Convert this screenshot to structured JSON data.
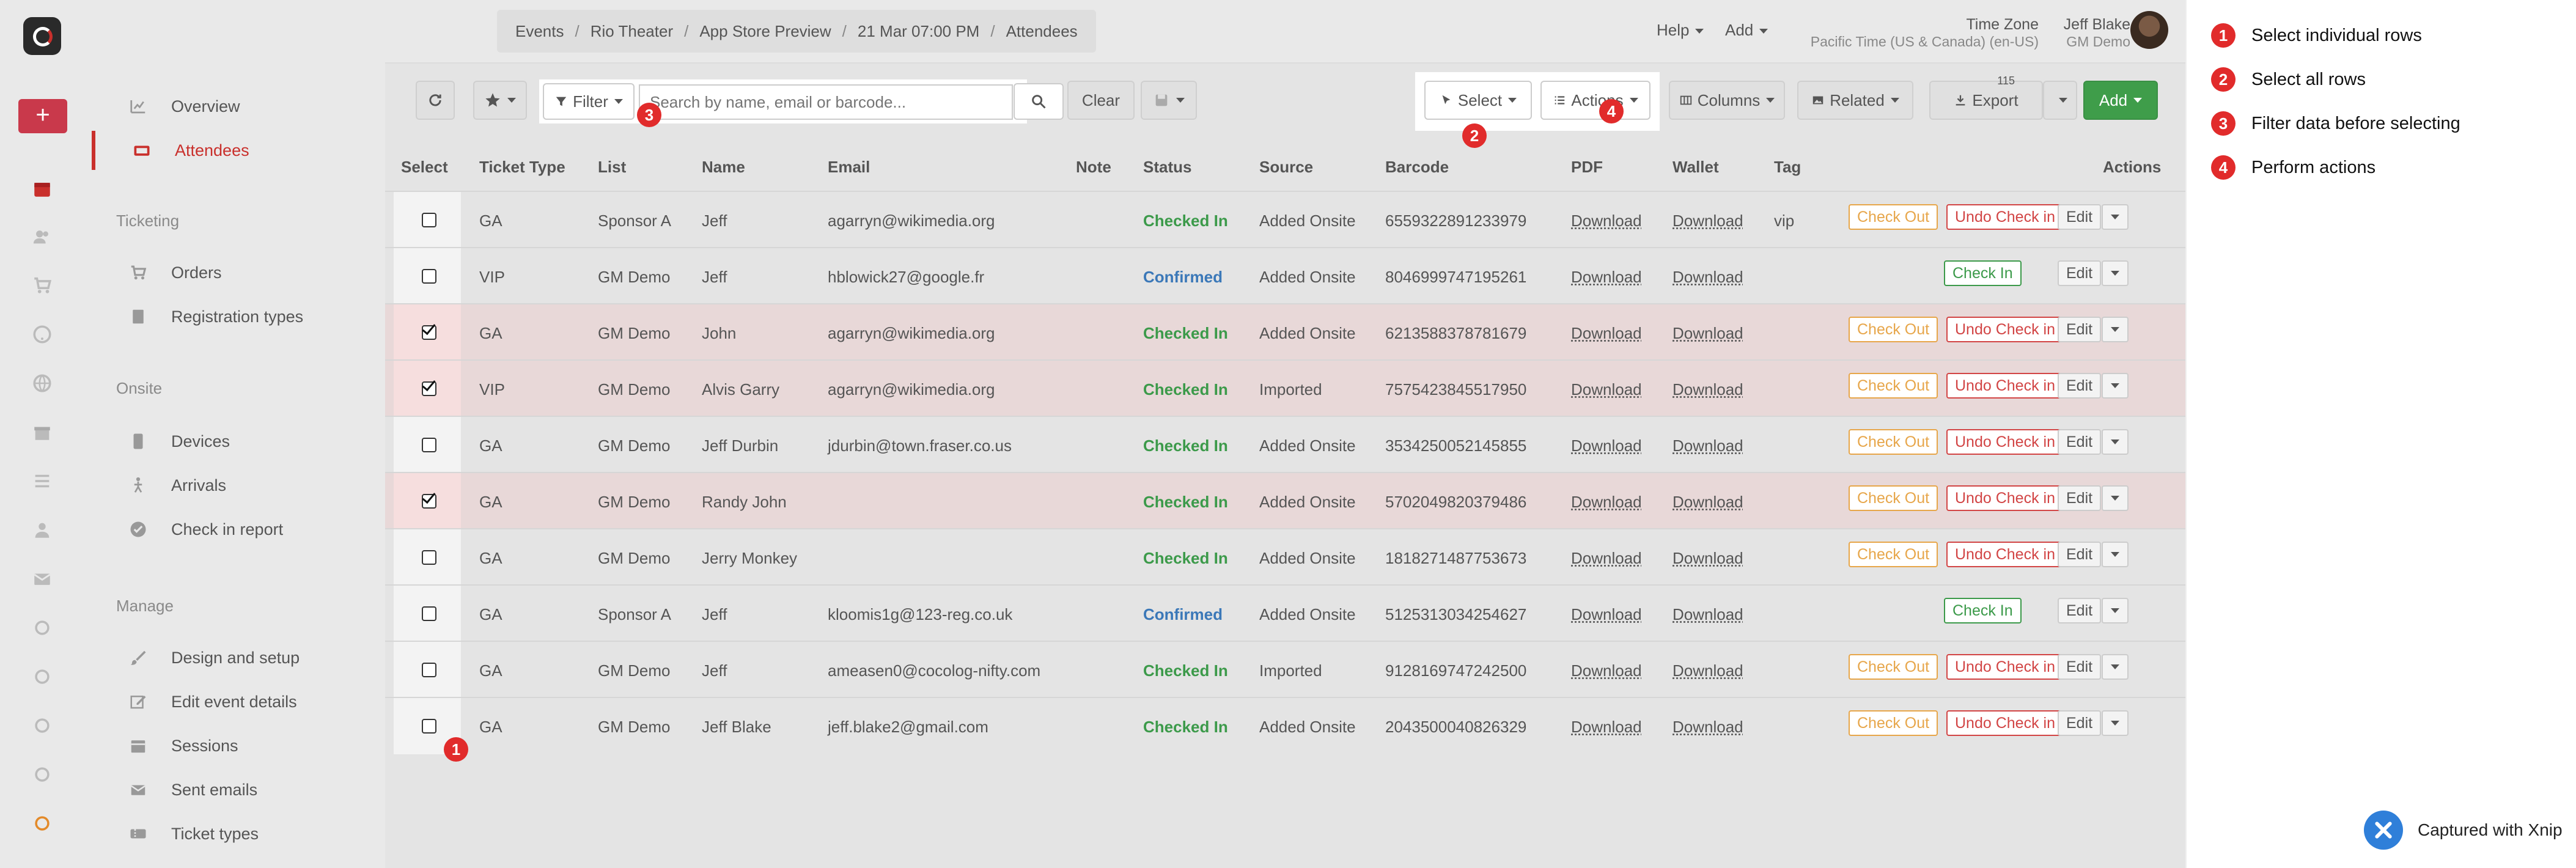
{
  "nav": {
    "items": [
      {
        "label": "Overview",
        "icon": "chart-icon",
        "active": false
      },
      {
        "label": "Attendees",
        "icon": "attendees-icon",
        "active": true
      }
    ],
    "ticketing_label": "Ticketing",
    "ticketing": [
      {
        "label": "Orders",
        "icon": "cart-icon"
      },
      {
        "label": "Registration types",
        "icon": "registration-icon"
      }
    ],
    "onsite_label": "Onsite",
    "onsite": [
      {
        "label": "Devices",
        "icon": "devices-icon"
      },
      {
        "label": "Arrivals",
        "icon": "arrivals-icon"
      },
      {
        "label": "Check in report",
        "icon": "check-circle-icon"
      }
    ],
    "manage_label": "Manage",
    "manage": [
      {
        "label": "Design and setup",
        "icon": "brush-icon"
      },
      {
        "label": "Edit event details",
        "icon": "edit-icon"
      },
      {
        "label": "Sessions",
        "icon": "calendar-icon"
      },
      {
        "label": "Sent emails",
        "icon": "email-icon"
      },
      {
        "label": "Ticket types",
        "icon": "ticket-icon"
      }
    ]
  },
  "header": {
    "breadcrumb": [
      "Events",
      "Rio Theater",
      "App Store Preview",
      "21 Mar 07:00 PM",
      "Attendees"
    ],
    "help": "Help",
    "add": "Add",
    "timezone_label": "Time Zone",
    "timezone_value": "Pacific Time (US & Canada) (en-US)",
    "user_name": "Jeff Blake",
    "user_org": "GM Demo"
  },
  "toolbar": {
    "filter": "Filter",
    "search_placeholder": "Search by name, email or barcode...",
    "clear": "Clear",
    "select": "Select",
    "actions": "Actions",
    "columns": "Columns",
    "related": "Related",
    "export": "Export",
    "export_count": "115",
    "add": "Add"
  },
  "table": {
    "headers": [
      "Select",
      "Ticket Type",
      "List",
      "Name",
      "Email",
      "Note",
      "Status",
      "Source",
      "Barcode",
      "PDF",
      "Wallet",
      "Tag",
      "Actions"
    ],
    "rows": [
      {
        "selected": false,
        "type": "GA",
        "list": "Sponsor A",
        "name": "Jeff",
        "email": "agarryn@wikimedia.org",
        "status": "Checked In",
        "source": "Added Onsite",
        "barcode": "6559322891233979",
        "pdf": "Download",
        "wallet": "Download",
        "tag": "vip"
      },
      {
        "selected": false,
        "type": "VIP",
        "list": "GM Demo",
        "name": "Jeff",
        "email": "hblowick27@google.fr",
        "status": "Confirmed",
        "source": "Added Onsite",
        "barcode": "8046999747195261",
        "pdf": "Download",
        "wallet": "Download",
        "tag": ""
      },
      {
        "selected": true,
        "type": "GA",
        "list": "GM Demo",
        "name": "John",
        "email": "agarryn@wikimedia.org",
        "status": "Checked In",
        "source": "Added Onsite",
        "barcode": "6213588378781679",
        "pdf": "Download",
        "wallet": "Download",
        "tag": ""
      },
      {
        "selected": true,
        "type": "VIP",
        "list": "GM Demo",
        "name": "Alvis Garry",
        "email": "agarryn@wikimedia.org",
        "status": "Checked In",
        "source": "Imported",
        "barcode": "7575423845517950",
        "pdf": "Download",
        "wallet": "Download",
        "tag": ""
      },
      {
        "selected": false,
        "type": "GA",
        "list": "GM Demo",
        "name": "Jeff Durbin",
        "email": "jdurbin@town.fraser.co.us",
        "status": "Checked In",
        "source": "Added Onsite",
        "barcode": "3534250052145855",
        "pdf": "Download",
        "wallet": "Download",
        "tag": ""
      },
      {
        "selected": true,
        "type": "GA",
        "list": "GM Demo",
        "name": "Randy John",
        "email": "",
        "status": "Checked In",
        "source": "Added Onsite",
        "barcode": "5702049820379486",
        "pdf": "Download",
        "wallet": "Download",
        "tag": ""
      },
      {
        "selected": false,
        "type": "GA",
        "list": "GM Demo",
        "name": "Jerry Monkey",
        "email": "",
        "status": "Checked In",
        "source": "Added Onsite",
        "barcode": "1818271487753673",
        "pdf": "Download",
        "wallet": "Download",
        "tag": ""
      },
      {
        "selected": false,
        "type": "GA",
        "list": "Sponsor A",
        "name": "Jeff",
        "email": "kloomis1g@123-reg.co.uk",
        "status": "Confirmed",
        "source": "Added Onsite",
        "barcode": "5125313034254627",
        "pdf": "Download",
        "wallet": "Download",
        "tag": ""
      },
      {
        "selected": false,
        "type": "GA",
        "list": "GM Demo",
        "name": "Jeff",
        "email": "ameasen0@cocolog-nifty.com",
        "status": "Checked In",
        "source": "Imported",
        "barcode": "9128169747242500",
        "pdf": "Download",
        "wallet": "Download",
        "tag": ""
      },
      {
        "selected": false,
        "type": "GA",
        "list": "GM Demo",
        "name": "Jeff Blake",
        "email": "jeff.blake2@gmail.com",
        "status": "Checked In",
        "source": "Added Onsite",
        "barcode": "2043500040826329",
        "pdf": "Download",
        "wallet": "Download",
        "tag": ""
      }
    ],
    "row_actions": {
      "check_out": "Check Out",
      "undo_check_in": "Undo Check in",
      "check_in": "Check In",
      "edit": "Edit"
    }
  },
  "annotations": {
    "badges": [
      "1",
      "2",
      "3",
      "4"
    ],
    "legend": [
      {
        "num": "1",
        "text": "Select individual rows"
      },
      {
        "num": "2",
        "text": "Select all rows"
      },
      {
        "num": "3",
        "text": "Filter data before selecting"
      },
      {
        "num": "4",
        "text": "Perform actions"
      }
    ],
    "captured_with": "Captured with Xnip"
  },
  "colors": {
    "accent": "#c9302c",
    "checked_in": "#3c9a4a",
    "confirmed": "#3b78b8",
    "check_out": "#e7a64a",
    "undo": "#d24545",
    "badge": "#e12b2b"
  }
}
